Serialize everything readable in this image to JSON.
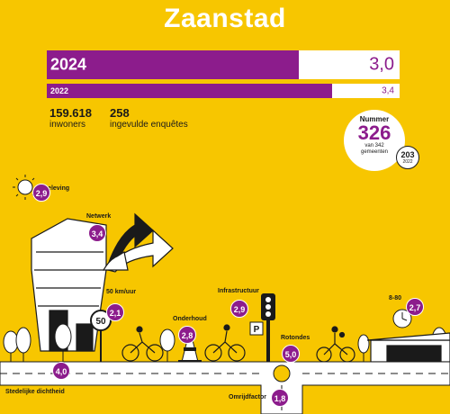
{
  "title": "Zaanstad",
  "bars": [
    {
      "year": "2024",
      "score": "3,0",
      "value": 3.0,
      "max": 4.2
    },
    {
      "year": "2022",
      "score": "3,4",
      "value": 3.4,
      "max": 4.2
    }
  ],
  "stats": [
    {
      "number": "159.618",
      "label": "inwoners"
    },
    {
      "number": "258",
      "label": "ingevulde enquêtes"
    }
  ],
  "rank": {
    "label": "Nummer",
    "value": "326",
    "of_text": "van 342",
    "of_text2": "gemeenten",
    "prev_value": "203",
    "prev_year": "2022"
  },
  "indicators": [
    {
      "name": "Beleving",
      "score": "2,9"
    },
    {
      "name": "Netwerk",
      "score": "3,4"
    },
    {
      "name": "50 km/uur",
      "score": "2,1"
    },
    {
      "name": "Onderhoud",
      "score": "2,8"
    },
    {
      "name": "Infrastructuur",
      "score": "2,9"
    },
    {
      "name": "Rotondes",
      "score": "5,0"
    },
    {
      "name": "8-80",
      "score": "2,7"
    },
    {
      "name": "Stedelijke dichtheid",
      "score": "4,0"
    },
    {
      "name": "Omrijdfactor",
      "score": "1,8"
    }
  ],
  "signs": {
    "speed": "50",
    "parking": "P"
  },
  "colors": {
    "background": "#f7c600",
    "accent": "#8c1c8c",
    "white": "#ffffff"
  }
}
